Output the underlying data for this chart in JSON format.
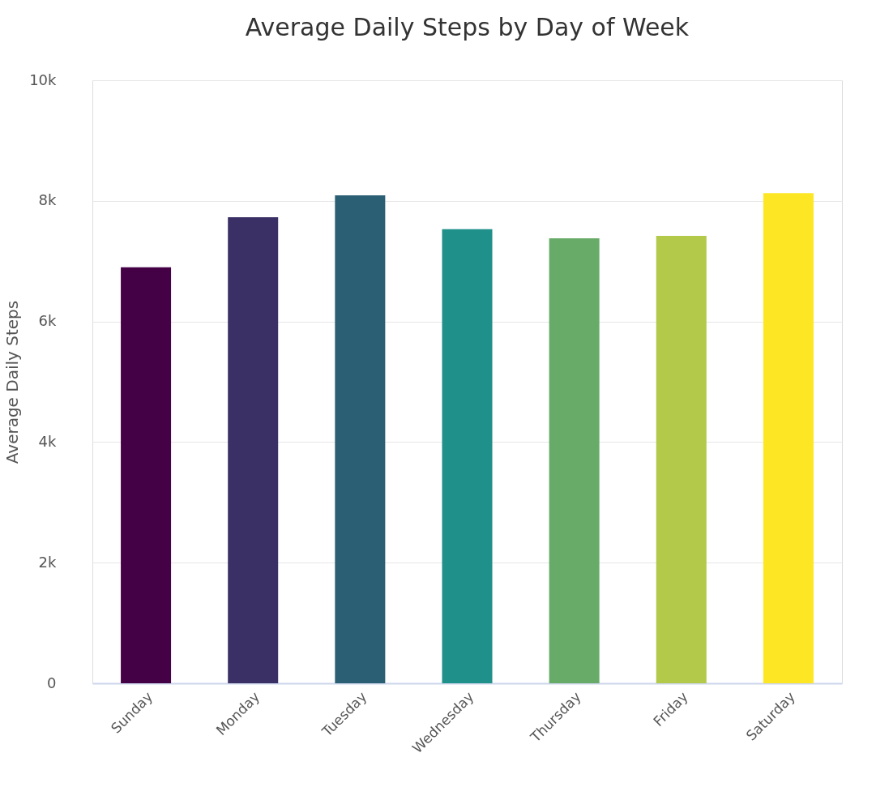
{
  "chart_data": {
    "type": "bar",
    "title": "Average Daily Steps by Day of Week",
    "ylabel": "Average Daily Steps",
    "categories": [
      "Sunday",
      "Monday",
      "Tuesday",
      "Wednesday",
      "Thursday",
      "Friday",
      "Saturday"
    ],
    "values": [
      6900,
      7730,
      8090,
      7530,
      7380,
      7420,
      8130
    ],
    "colors": [
      "#440145",
      "#3b3066",
      "#2a5f74",
      "#20908a",
      "#68ab68",
      "#b2c94a",
      "#fde725"
    ],
    "ylim": [
      0,
      10000
    ],
    "yticks": [
      {
        "value": 0,
        "label": "0"
      },
      {
        "value": 2000,
        "label": "2k"
      },
      {
        "value": 4000,
        "label": "4k"
      },
      {
        "value": 6000,
        "label": "6k"
      },
      {
        "value": 8000,
        "label": "8k"
      },
      {
        "value": 10000,
        "label": "10k"
      }
    ],
    "grid": "y",
    "legend": false
  }
}
